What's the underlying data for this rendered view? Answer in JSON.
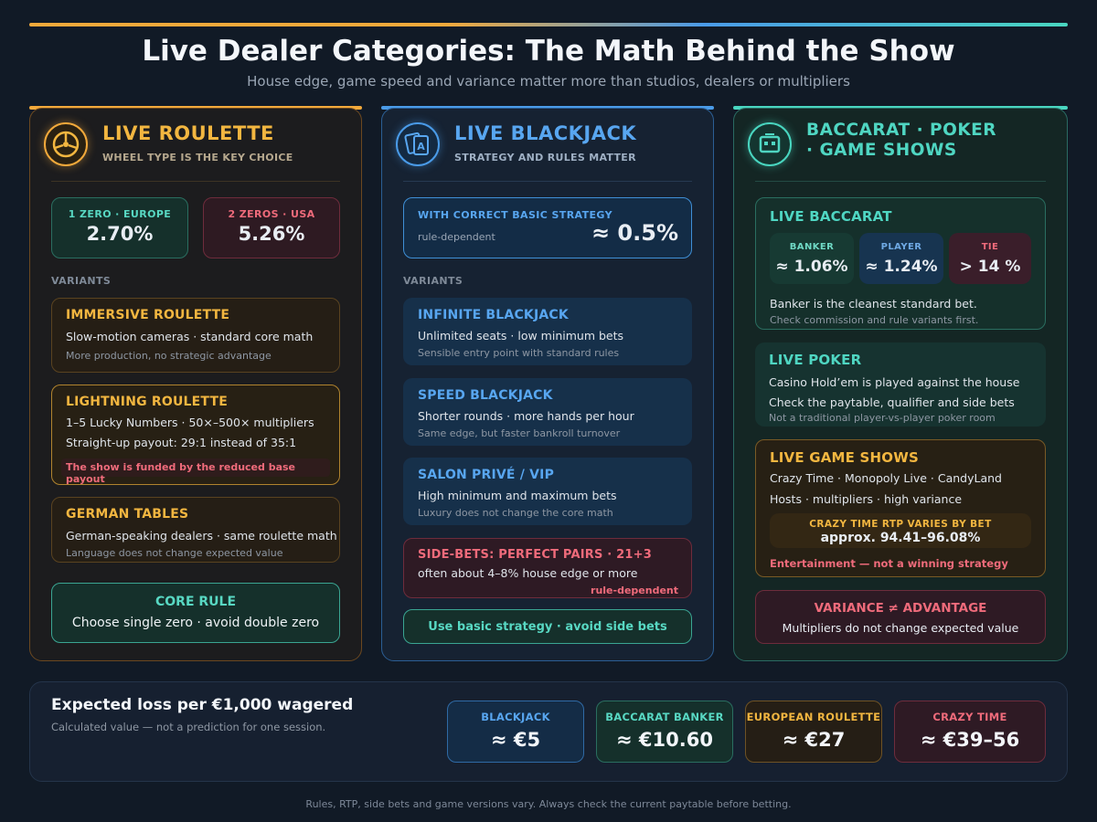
{
  "header": {
    "title": "Live Dealer Categories: The Math Behind the Show",
    "subtitle": "House edge, game speed and variance matter more than studios, dealers or multipliers"
  },
  "colors": {
    "orange": "#f2b640",
    "blue": "#58a6f0",
    "teal": "#4fd6c2",
    "red": "#ef6b7b"
  },
  "roulette": {
    "title": "LIVE ROULETTE",
    "subtitle": "WHEEL TYPE IS THE KEY CHOICE",
    "icon": "roulette-wheel-icon",
    "europe": {
      "label": "1 ZERO · EUROPE",
      "value": "2.70%"
    },
    "usa": {
      "label": "2 ZEROS · USA",
      "value": "5.26%"
    },
    "variants_label": "VARIANTS",
    "immersive": {
      "title": "IMMERSIVE ROULETTE",
      "line1": "Slow-motion cameras · standard core math",
      "note": "More production, no strategic advantage"
    },
    "lightning": {
      "title": "LIGHTNING ROULETTE",
      "line1": "1–5 Lucky Numbers · 50×–500× multipliers",
      "line2": "Straight-up payout: 29:1 instead of 35:1",
      "warn": "The show is funded by the reduced base payout"
    },
    "german": {
      "title": "GERMAN TABLES",
      "line1": "German-speaking dealers · same roulette math",
      "note": "Language does not change expected value"
    },
    "core": {
      "title": "CORE RULE",
      "text": "Choose single zero · avoid double zero"
    }
  },
  "blackjack": {
    "title": "LIVE BLACKJACK",
    "subtitle": "STRATEGY AND RULES MATTER",
    "icon": "playing-cards-icon",
    "edge": {
      "label": "WITH CORRECT BASIC STRATEGY",
      "note": "rule-dependent",
      "value": "≈ 0.5%"
    },
    "variants_label": "VARIANTS",
    "infinite": {
      "title": "INFINITE BLACKJACK",
      "line1": "Unlimited seats · low minimum bets",
      "note": "Sensible entry point with standard rules"
    },
    "speed": {
      "title": "SPEED BLACKJACK",
      "line1": "Shorter rounds · more hands per hour",
      "note": "Same edge, but faster bankroll turnover"
    },
    "salon": {
      "title": "SALON PRIVÉ / VIP",
      "line1": "High minimum and maximum bets",
      "note": "Luxury does not change the core math"
    },
    "sidebets": {
      "title": "SIDE-BETS: PERFECT PAIRS · 21+3",
      "line1": "often about 4–8% house edge or more",
      "note": "rule-dependent"
    },
    "rule": "Use basic strategy · avoid side bets"
  },
  "other": {
    "title_line1": "BACCARAT · POKER",
    "title_line2": "· GAME SHOWS",
    "icon": "game-table-icon",
    "baccarat": {
      "title": "LIVE BACCARAT",
      "banker": {
        "label": "BANKER",
        "value": "≈ 1.06%"
      },
      "player": {
        "label": "PLAYER",
        "value": "≈ 1.24%"
      },
      "tie": {
        "label": "TIE",
        "value": "> 14 %"
      },
      "line1": "Banker is the cleanest standard bet.",
      "note": "Check commission and rule variants first."
    },
    "poker": {
      "title": "LIVE POKER",
      "line1": "Casino Hold’em is played against the house",
      "line2": "Check the paytable, qualifier and side bets",
      "note": "Not a traditional player-vs-player poker room"
    },
    "shows": {
      "title": "LIVE GAME SHOWS",
      "line1": "Crazy Time · Monopoly Live · CandyLand",
      "line2": "Hosts · multipliers · high variance",
      "rtp_label": "CRAZY TIME RTP VARIES BY BET",
      "rtp_value": "approx. 94.41–96.08%",
      "warn": "Entertainment — not a winning strategy"
    },
    "variance": {
      "title": "VARIANCE ≠ ADVANTAGE",
      "text": "Multipliers do not change expected value"
    }
  },
  "loss": {
    "title": "Expected loss per €1,000 wagered",
    "note": "Calculated value — not a prediction for one session.",
    "items": [
      {
        "label": "BLACKJACK",
        "value": "≈ €5"
      },
      {
        "label": "BACCARAT BANKER",
        "value": "≈ €10.60"
      },
      {
        "label": "EUROPEAN ROULETTE",
        "value": "≈ €27"
      },
      {
        "label": "CRAZY TIME",
        "value": "≈ €39–56"
      }
    ]
  },
  "footer": "Rules, RTP, side bets and game versions vary. Always check the current paytable before betting."
}
